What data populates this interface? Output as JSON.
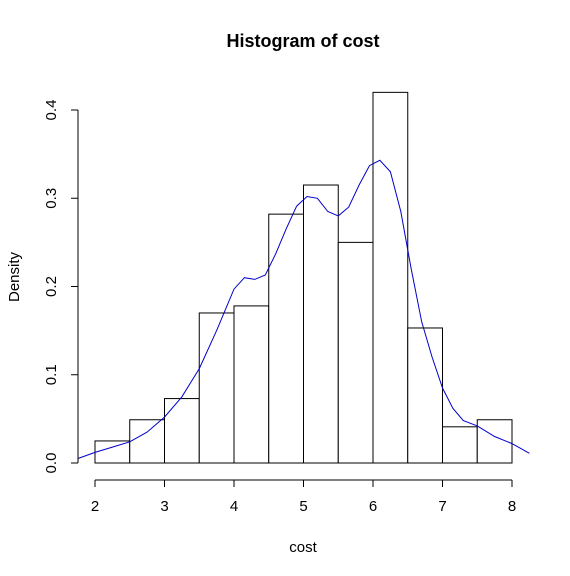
{
  "chart_data": {
    "type": "bar",
    "title": "Histogram of cost",
    "xlabel": "cost",
    "ylabel": "Density",
    "xlim": [
      2,
      8
    ],
    "ylim": [
      0,
      0.42
    ],
    "x_ticks": [
      "2",
      "3",
      "4",
      "5",
      "6",
      "7",
      "8"
    ],
    "y_ticks": [
      "0.0",
      "0.1",
      "0.2",
      "0.3",
      "0.4"
    ],
    "bins": [
      {
        "start": 2.0,
        "end": 2.5,
        "density": 0.025
      },
      {
        "start": 2.5,
        "end": 3.0,
        "density": 0.049
      },
      {
        "start": 3.0,
        "end": 3.5,
        "density": 0.073
      },
      {
        "start": 3.5,
        "end": 4.0,
        "density": 0.17
      },
      {
        "start": 4.0,
        "end": 4.5,
        "density": 0.178
      },
      {
        "start": 4.5,
        "end": 5.0,
        "density": 0.282
      },
      {
        "start": 5.0,
        "end": 5.5,
        "density": 0.315
      },
      {
        "start": 5.5,
        "end": 6.0,
        "density": 0.25
      },
      {
        "start": 6.0,
        "end": 6.5,
        "density": 0.42
      },
      {
        "start": 6.5,
        "end": 7.0,
        "density": 0.153
      },
      {
        "start": 7.0,
        "end": 7.5,
        "density": 0.041
      },
      {
        "start": 7.5,
        "end": 8.0,
        "density": 0.049
      }
    ],
    "density_curve": {
      "color": "#0000cc",
      "x": [
        1.75,
        2.0,
        2.25,
        2.5,
        2.75,
        3.0,
        3.25,
        3.5,
        3.75,
        4.0,
        4.15,
        4.3,
        4.45,
        4.6,
        4.75,
        4.9,
        5.05,
        5.2,
        5.35,
        5.5,
        5.65,
        5.8,
        5.95,
        6.1,
        6.25,
        6.4,
        6.55,
        6.7,
        6.85,
        7.0,
        7.15,
        7.3,
        7.5,
        7.75,
        8.0,
        8.25
      ],
      "y": [
        0.005,
        0.012,
        0.018,
        0.024,
        0.035,
        0.052,
        0.075,
        0.107,
        0.15,
        0.197,
        0.21,
        0.208,
        0.213,
        0.237,
        0.265,
        0.291,
        0.302,
        0.3,
        0.285,
        0.28,
        0.29,
        0.315,
        0.337,
        0.343,
        0.33,
        0.285,
        0.22,
        0.16,
        0.12,
        0.085,
        0.062,
        0.048,
        0.042,
        0.03,
        0.022,
        0.011
      ]
    }
  }
}
